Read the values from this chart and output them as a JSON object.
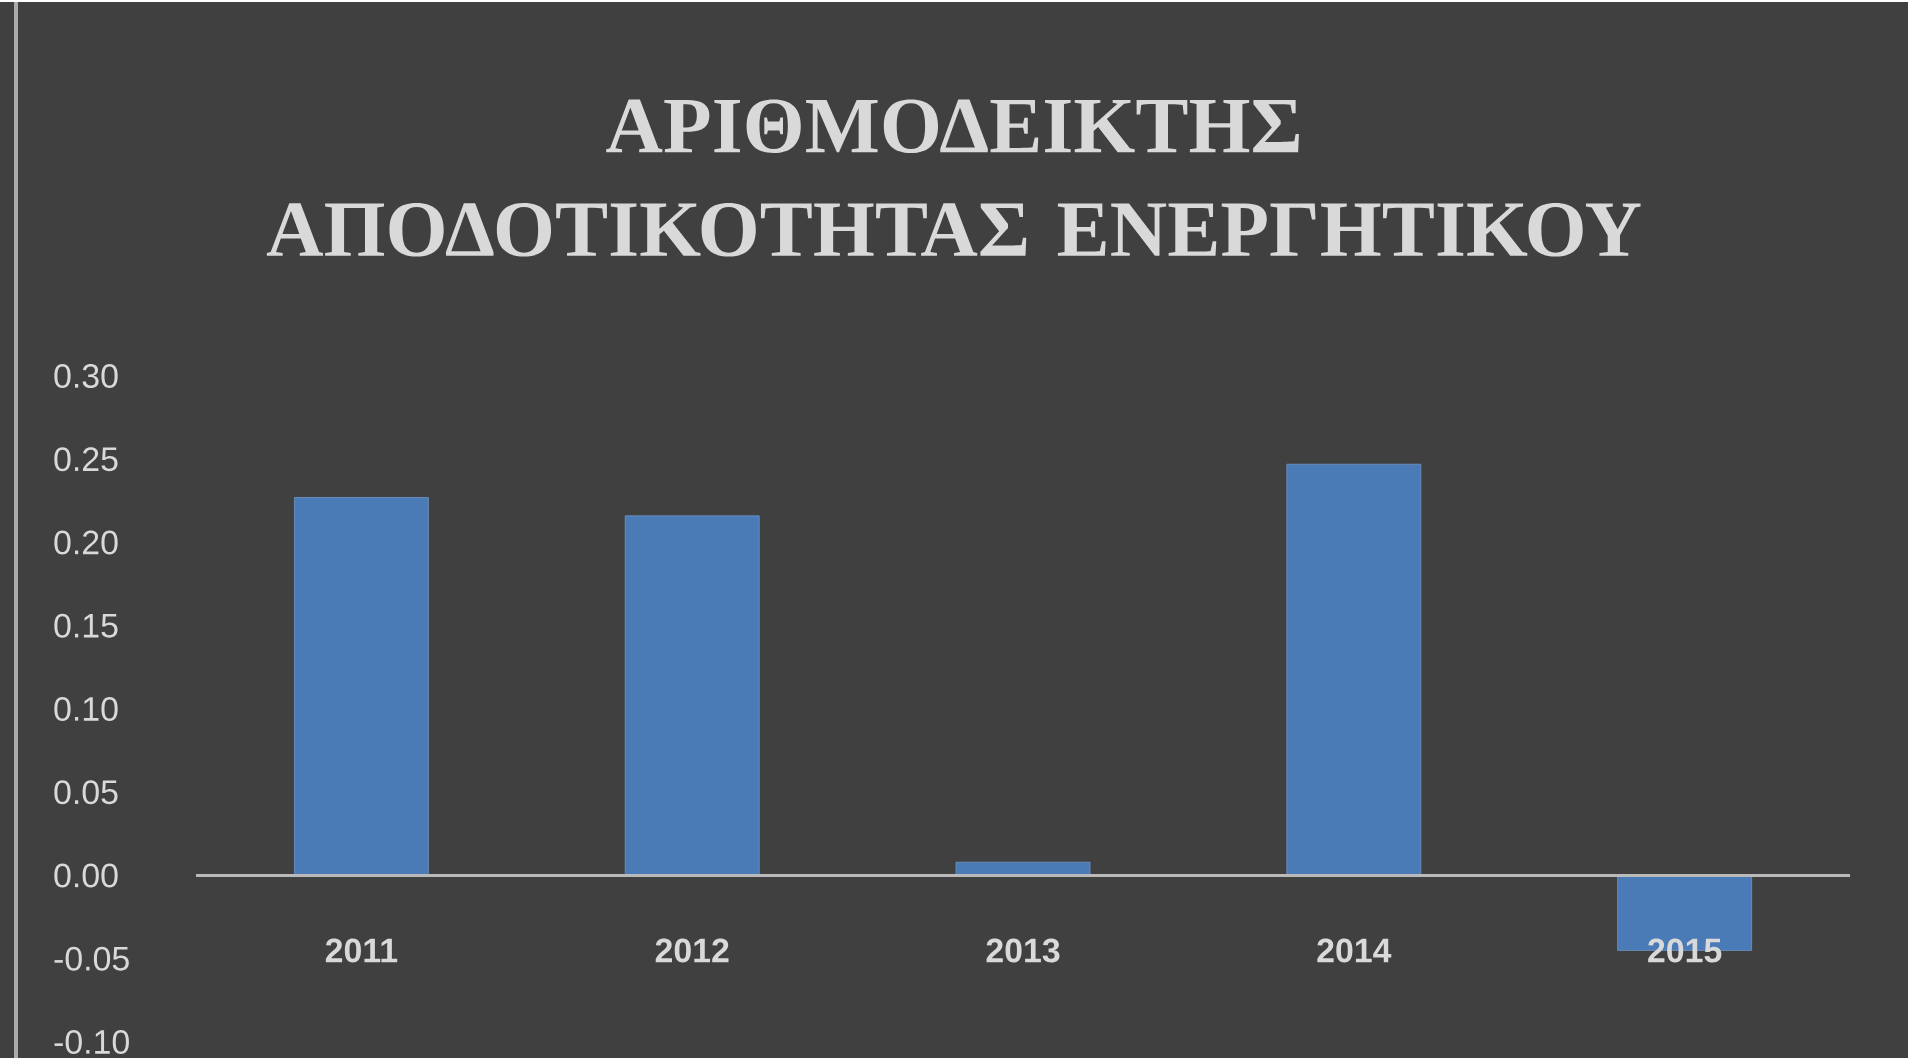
{
  "chart_data": {
    "type": "bar",
    "title": "ΑΡΙΘΜΟΔΕΙΚΤΗΣ ΑΠΟΔΟΤΙΚΟΤΗΤΑΣ ΕΝΕΡΓΗΤΙΚΟΥ",
    "categories": [
      "2011",
      "2012",
      "2013",
      "2014",
      "2015"
    ],
    "values": [
      0.227,
      0.216,
      0.008,
      0.247,
      -0.045
    ],
    "color": "#4a7bb7",
    "ylim": [
      -0.1,
      0.3
    ],
    "yticks": [
      {
        "value": -0.1,
        "label": "-0.10"
      },
      {
        "value": -0.05,
        "label": "-0.05"
      },
      {
        "value": 0,
        "label": "0.00"
      },
      {
        "value": 0.05,
        "label": "0.05"
      },
      {
        "value": 0.1,
        "label": "0.10"
      },
      {
        "value": 0.15,
        "label": "0.15"
      },
      {
        "value": 0.2,
        "label": "0.20"
      },
      {
        "value": 0.25,
        "label": "0.25"
      },
      {
        "value": 0.3,
        "label": "0.30"
      }
    ],
    "grid": false
  }
}
